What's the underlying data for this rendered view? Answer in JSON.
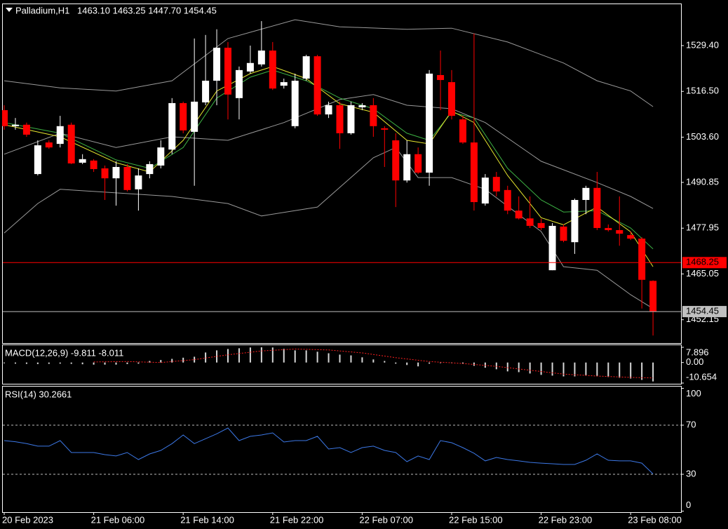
{
  "chart_data": [
    {
      "type": "candlestick",
      "title": "Palladium,H1",
      "subtitle": "1463.10 1463.25 1447.70 1454.45",
      "up_color": "#ffffff",
      "down_color": "#ff0000",
      "categories": [
        "20 Feb 2023",
        null,
        null,
        null,
        null,
        null,
        null,
        null,
        "21 Feb 06:00",
        null,
        null,
        null,
        null,
        null,
        null,
        null,
        "21 Feb 14:00",
        null,
        null,
        null,
        null,
        null,
        null,
        null,
        "21 Feb 22:00",
        null,
        null,
        null,
        null,
        null,
        null,
        null,
        "22 Feb 07:00",
        null,
        null,
        null,
        null,
        null,
        null,
        null,
        "22 Feb 15:00",
        null,
        null,
        null,
        null,
        null,
        null,
        null,
        "22 Feb 23:00",
        null,
        null,
        null,
        null,
        null,
        null,
        null,
        "23 Feb 08:00",
        null,
        null
      ],
      "candles": [
        [
          1511.2,
          1512.6,
          1505.7,
          1506.7
        ],
        [
          1506.7,
          1509.0,
          1505.7,
          1507.1
        ],
        [
          1507.1,
          1507.7,
          1503.7,
          1504.3
        ],
        [
          1493.2,
          1502.7,
          1492.8,
          1501.3
        ],
        [
          1502.1,
          1502.7,
          1500.3,
          1500.7
        ],
        [
          1501.7,
          1509.6,
          1500.7,
          1506.7
        ],
        [
          1507.1,
          1507.7,
          1496.0,
          1496.2
        ],
        [
          1496.4,
          1498.8,
          1496.0,
          1497.4
        ],
        [
          1497.0,
          1497.4,
          1493.8,
          1494.6
        ],
        [
          1494.8,
          1495.6,
          1485.9,
          1492.0
        ],
        [
          1492.0,
          1496.8,
          1484.3,
          1495.2
        ],
        [
          1495.2,
          1496.0,
          1488.3,
          1488.7
        ],
        [
          1488.9,
          1494.8,
          1482.9,
          1492.8
        ],
        [
          1493.2,
          1496.8,
          1492.0,
          1496.0
        ],
        [
          1495.6,
          1502.7,
          1494.8,
          1500.7
        ],
        [
          1500.1,
          1514.6,
          1498.8,
          1513.2
        ],
        [
          1513.2,
          1513.6,
          1504.7,
          1505.5
        ],
        [
          1505.1,
          1531.4,
          1489.9,
          1513.6
        ],
        [
          1513.4,
          1532.4,
          1512.6,
          1519.5
        ],
        [
          1519.5,
          1534.0,
          1512.6,
          1528.8
        ],
        [
          1528.8,
          1530.4,
          1508.6,
          1515.6
        ],
        [
          1514.6,
          1523.5,
          1508.6,
          1522.5
        ],
        [
          1522.1,
          1529.4,
          1521.5,
          1524.5
        ],
        [
          1524.1,
          1536.3,
          1523.5,
          1528.0
        ],
        [
          1528.0,
          1530.4,
          1516.9,
          1517.3
        ],
        [
          1518.1,
          1520.1,
          1517.3,
          1519.1
        ],
        [
          1506.7,
          1521.5,
          1506.1,
          1519.5
        ],
        [
          1520.1,
          1526.8,
          1519.5,
          1526.4
        ],
        [
          1526.4,
          1526.8,
          1509.6,
          1510.0
        ],
        [
          1510.0,
          1513.6,
          1509.0,
          1512.6
        ],
        [
          1512.6,
          1513.6,
          1500.3,
          1504.7
        ],
        [
          1504.7,
          1513.6,
          1504.3,
          1512.6
        ],
        [
          1512.0,
          1513.2,
          1511.2,
          1512.6
        ],
        [
          1512.6,
          1514.6,
          1503.7,
          1506.7
        ],
        [
          1506.1,
          1506.7,
          1495.2,
          1505.7
        ],
        [
          1502.7,
          1504.7,
          1483.9,
          1491.4
        ],
        [
          1491.4,
          1502.7,
          1490.8,
          1498.8
        ],
        [
          1498.8,
          1500.7,
          1493.2,
          1493.6
        ],
        [
          1493.6,
          1522.5,
          1489.9,
          1521.5
        ],
        [
          1521.1,
          1528.0,
          1511.2,
          1519.7
        ],
        [
          1519.1,
          1522.5,
          1508.6,
          1509.6
        ],
        [
          1508.6,
          1509.6,
          1501.7,
          1502.1
        ],
        [
          1502.1,
          1532.8,
          1482.9,
          1485.3
        ],
        [
          1484.9,
          1493.2,
          1484.3,
          1492.2
        ],
        [
          1492.4,
          1493.8,
          1486.9,
          1488.3
        ],
        [
          1488.7,
          1489.9,
          1481.9,
          1482.9
        ],
        [
          1482.9,
          1486.9,
          1480.4,
          1480.7
        ],
        [
          1480.7,
          1486.9,
          1478.0,
          1478.6
        ],
        [
          1479.4,
          1480.6,
          1477.4,
          1478.0
        ],
        [
          1466.1,
          1479.4,
          1466.1,
          1478.6
        ],
        [
          1478.4,
          1479.0,
          1474.0,
          1474.4
        ],
        [
          1474.0,
          1486.3,
          1470.7,
          1485.9
        ],
        [
          1485.9,
          1489.9,
          1481.9,
          1489.3
        ],
        [
          1489.3,
          1493.8,
          1477.4,
          1478.0
        ],
        [
          1478.0,
          1479.0,
          1477.0,
          1477.4
        ],
        [
          1477.4,
          1486.9,
          1473.0,
          1476.4
        ],
        [
          1476.0,
          1477.0,
          1474.6,
          1475.0
        ],
        [
          1475.0,
          1475.4,
          1455.3,
          1463.4
        ],
        [
          1463.1,
          1463.25,
          1447.7,
          1454.45
        ]
      ],
      "overlays": [
        {
          "color": "#9a9a9a",
          "x": [
            0,
            5,
            10,
            15,
            20,
            26,
            30,
            36,
            40,
            45,
            50,
            53,
            56,
            58
          ],
          "values": [
            1519.5,
            1517.5,
            1516.6,
            1519.5,
            1531.4,
            1536.7,
            1534.7,
            1534.0,
            1534.3,
            1530.4,
            1524.5,
            1519.5,
            1516.6,
            1512.2
          ]
        },
        {
          "color": "#9a9a9a",
          "x": [
            0,
            5,
            10,
            15,
            20,
            25,
            30,
            33,
            36,
            40,
            43,
            48,
            53,
            56,
            58
          ],
          "values": [
            1498.8,
            1504.7,
            1500.7,
            1503.7,
            1502.7,
            1507.7,
            1514.2,
            1515.6,
            1512.6,
            1511.6,
            1507.7,
            1496.8,
            1490.8,
            1486.9,
            1483.5
          ]
        },
        {
          "color": "#9a9a9a",
          "x": [
            0,
            3,
            5,
            10,
            15,
            20,
            23,
            28,
            33,
            35,
            37,
            40,
            43,
            48,
            50,
            53,
            56,
            58
          ],
          "values": [
            1476.6,
            1484.9,
            1488.9,
            1487.9,
            1486.9,
            1484.9,
            1481.4,
            1483.9,
            1497.8,
            1500.7,
            1492.2,
            1492.2,
            1488.9,
            1477.0,
            1467.1,
            1466.1,
            1459.2,
            1455.3
          ]
        },
        {
          "color": "#3cb043",
          "x": [
            0,
            5,
            10,
            13,
            16,
            19,
            22,
            24,
            27,
            30,
            33,
            36,
            38,
            40,
            42,
            45,
            48,
            50,
            53,
            56,
            58
          ],
          "values": [
            1507.7,
            1504.7,
            1497.2,
            1494.8,
            1500.7,
            1514.6,
            1520.5,
            1522.5,
            1519.5,
            1514.6,
            1511.6,
            1504.7,
            1502.7,
            1510.6,
            1509.0,
            1494.8,
            1485.9,
            1482.5,
            1482.9,
            1478.0,
            1472.1
          ]
        },
        {
          "color": "#e6e62e",
          "x": [
            0,
            5,
            10,
            13,
            16,
            19,
            22,
            24,
            27,
            30,
            33,
            36,
            38,
            40,
            42,
            45,
            48,
            50,
            53,
            56,
            58
          ],
          "values": [
            1507.1,
            1503.7,
            1496.4,
            1493.8,
            1502.7,
            1516.6,
            1521.5,
            1523.5,
            1520.1,
            1513.0,
            1510.6,
            1502.7,
            1501.7,
            1511.0,
            1507.7,
            1492.8,
            1480.9,
            1478.9,
            1483.9,
            1476.9,
            1467.1
          ]
        }
      ],
      "hlines": [
        {
          "value": 1468.25,
          "color": "#ff0000"
        },
        {
          "value": 1454.45,
          "color": "#c0c0c0"
        }
      ],
      "ylim": [
        1445.57,
        1541.26
      ],
      "yticks": [
        {
          "value": 1529.4,
          "label": "1529.40"
        },
        {
          "value": 1516.5,
          "label": "1516.50"
        },
        {
          "value": 1503.6,
          "label": "1503.60"
        },
        1490.85,
        1477.95,
        1465.05,
        1452.15
      ]
    },
    {
      "type": "macd",
      "title": "MACD(12,26,9) -9.811 -8.011",
      "color": "#d8d8d8",
      "values": [
        -0.4,
        -0.6,
        -0.7,
        -0.8,
        -0.7,
        -0.6,
        -0.7,
        -0.9,
        -1.1,
        -1.1,
        -1.1,
        -0.8,
        -0.6,
        0.8,
        1.3,
        1.9,
        2.5,
        3.0,
        5.2,
        6.3,
        7.0,
        7.4,
        7.8,
        7.896,
        7.8,
        7.1,
        6.3,
        6.3,
        5.6,
        4.8,
        4.1,
        3.7,
        2.7,
        1.6,
        0.8,
        -0.6,
        -1.3,
        -2.0,
        -0.6,
        -0.3,
        -0.3,
        -0.6,
        -1.7,
        -2.7,
        -3.5,
        -4.6,
        -5.0,
        -5.7,
        -6.4,
        -6.8,
        -7.2,
        -7.2,
        -6.8,
        -7.2,
        -7.5,
        -7.9,
        -8.3,
        -9.0,
        -9.811
      ],
      "signal": {
        "color": "#ff2020",
        "x": [
          8,
          11,
          14,
          17,
          20,
          23,
          26,
          29,
          32,
          35,
          38,
          41,
          44,
          47,
          50,
          53,
          56,
          58
        ],
        "values": [
          0.3,
          0.5,
          0.0,
          1.5,
          4.0,
          6.0,
          7.0,
          6.5,
          5.0,
          2.5,
          0.5,
          -0.5,
          -2.0,
          -4.0,
          -6.0,
          -7.0,
          -7.7,
          -8.011
        ]
      },
      "ylim": [
        -10.654,
        7.896
      ],
      "yticks": [
        7.896,
        {
          "value": 0,
          "label": "0.00"
        },
        -10.654
      ]
    },
    {
      "type": "rsi",
      "title": "RSI(14) 30.2661",
      "color": "#3c78e6",
      "values": [
        57.4,
        56.5,
        55.0,
        52.9,
        52.9,
        57.4,
        47.7,
        47.7,
        47.7,
        46.0,
        44.9,
        47.7,
        42.0,
        46.6,
        49.4,
        55.0,
        62.0,
        55.0,
        59.0,
        63.0,
        67.7,
        57.4,
        60.9,
        62.0,
        63.7,
        56.3,
        57.4,
        57.4,
        60.9,
        50.6,
        51.7,
        47.7,
        51.7,
        52.9,
        49.4,
        47.7,
        40.3,
        44.9,
        42.0,
        57.4,
        55.7,
        51.7,
        47.1,
        40.9,
        43.7,
        42.0,
        40.9,
        39.7,
        39.1,
        38.6,
        38.0,
        38.0,
        41.4,
        46.6,
        41.4,
        40.9,
        40.9,
        39.1,
        30.2661
      ],
      "ylim": [
        0,
        100
      ],
      "yticks": [
        100,
        70,
        30,
        0
      ]
    }
  ]
}
